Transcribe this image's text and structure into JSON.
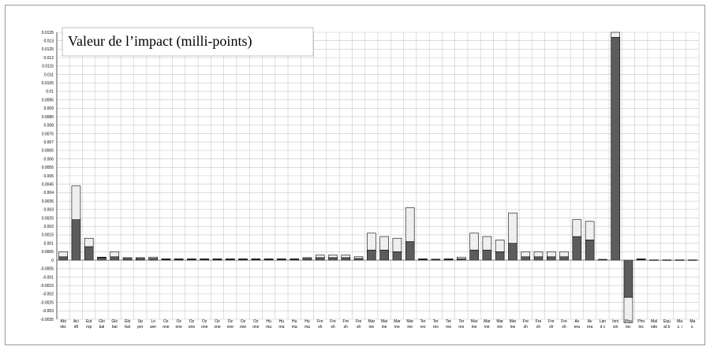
{
  "chart_data": {
    "type": "bar",
    "stacked": true,
    "title": "Valeur de l’impact (milli-points)",
    "ylim": [
      -0.0035,
      0.0135
    ],
    "ytick_step": 0.0005,
    "grid": true,
    "legend": "none",
    "colors": {
      "dark": "#5c5c5c",
      "light": "#efefef",
      "edge": "#000000"
    },
    "categories": [
      [
        "Abi",
        "otic"
      ],
      [
        "Aci",
        "dif"
      ],
      [
        "Eut",
        "rop"
      ],
      [
        "Glo",
        "bal"
      ],
      [
        "Glo",
        "bal"
      ],
      [
        "Glo",
        "bal"
      ],
      [
        "Up",
        "per"
      ],
      [
        "Lo",
        "wer"
      ],
      [
        "Oz",
        "one"
      ],
      [
        "Oz",
        "one"
      ],
      [
        "Oz",
        "one"
      ],
      [
        "Oz",
        "one"
      ],
      [
        "Oz",
        "one"
      ],
      [
        "Oz",
        "one"
      ],
      [
        "Oz",
        "one"
      ],
      [
        "Oz",
        "one"
      ],
      [
        "Hu",
        "ma"
      ],
      [
        "Hu",
        "ma"
      ],
      [
        "Hu",
        "ma"
      ],
      [
        "Hu",
        "ma"
      ],
      [
        "Fre",
        "sh"
      ],
      [
        "Fre",
        "sh"
      ],
      [
        "Fre",
        "sh"
      ],
      [
        "Fre",
        "sh"
      ],
      [
        "Mar",
        "ine"
      ],
      [
        "Mar",
        "ine"
      ],
      [
        "Mar",
        "ine"
      ],
      [
        "Mar",
        "ine"
      ],
      [
        "Ter",
        "res"
      ],
      [
        "Ter",
        "res"
      ],
      [
        "Ter",
        "res"
      ],
      [
        "Ter",
        "res"
      ],
      [
        "Mar",
        "ine"
      ],
      [
        "Mar",
        "ine"
      ],
      [
        "Mar",
        "ine"
      ],
      [
        "Mar",
        "ine"
      ],
      [
        "Fre",
        "sh"
      ],
      [
        "Fre",
        "sh"
      ],
      [
        "Fre",
        "sh"
      ],
      [
        "Fre",
        "sh"
      ],
      [
        "Av",
        "era"
      ],
      [
        "Av",
        "era"
      ],
      [
        "Lan",
        "d c"
      ],
      [
        "Ioni",
        "sin"
      ],
      [
        "Pho",
        "toc"
      ],
      [
        "Pho",
        "toc"
      ],
      [
        "Mal",
        "odo"
      ],
      [
        "Equ",
        "al b"
      ],
      [
        "Ma",
        "x. i"
      ],
      [
        "Ma",
        "x."
      ]
    ],
    "series": [
      {
        "values": [
          0.0002,
          0.0024,
          0.0008,
          0.00015,
          0.0002,
          0.0001,
          0.0001,
          0.0001,
          5e-05,
          5e-05,
          5e-05,
          5e-05,
          5e-05,
          5e-05,
          5e-05,
          5e-05,
          5e-05,
          5e-05,
          5e-05,
          0.0001,
          0.00015,
          0.00015,
          0.00015,
          0.0001,
          0.0006,
          0.0006,
          0.0005,
          0.0011,
          5e-05,
          3e-05,
          5e-05,
          8e-05,
          0.0006,
          0.0006,
          0.0005,
          0.001,
          0.0002,
          0.0002,
          0.0002,
          0.0002,
          0.0014,
          0.0012,
          3e-05,
          0.0132,
          -0.0022,
          5e-05,
          1e-05,
          1e-05,
          1e-05,
          1e-05
        ]
      },
      {
        "values": [
          0.0003,
          0.002,
          0.0005,
          3e-05,
          0.0003,
          5e-05,
          5e-05,
          8e-05,
          3e-05,
          3e-05,
          3e-05,
          3e-05,
          3e-05,
          3e-05,
          3e-05,
          3e-05,
          3e-05,
          3e-05,
          3e-05,
          5e-05,
          0.00015,
          0.00015,
          0.00015,
          0.0001,
          0.001,
          0.0008,
          0.0008,
          0.002,
          3e-05,
          3e-05,
          3e-05,
          0.0001,
          0.001,
          0.0008,
          0.0007,
          0.0018,
          0.0003,
          0.0003,
          0.0003,
          0.0003,
          0.001,
          0.0011,
          2e-05,
          0.0003,
          -0.0015,
          3e-05,
          1e-05,
          1e-05,
          1e-05,
          1e-05
        ]
      }
    ]
  }
}
